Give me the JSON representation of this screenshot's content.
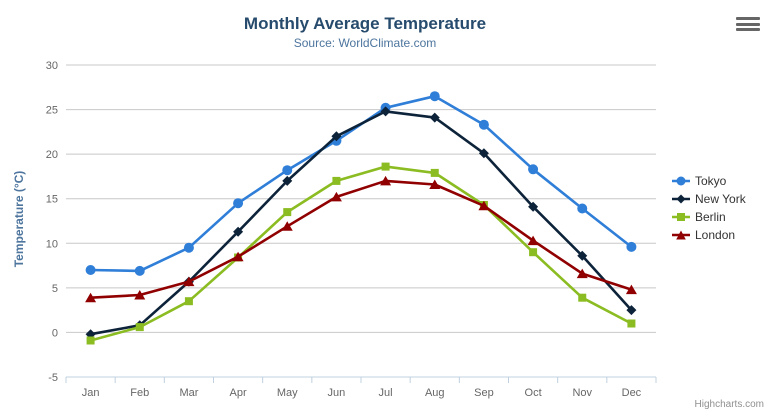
{
  "header": {
    "title": "Monthly Average Temperature",
    "subtitle": "Source: WorldClimate.com"
  },
  "credits_label": "Highcharts.com",
  "context_menu_icon": "hamburger-icon",
  "colors": {
    "title": "#274b6d",
    "subtitle": "#4d759e",
    "axis_title": "#4d759e",
    "axis_labels": "#666666",
    "gridline": "#c8c8c8",
    "axis_line": "#c0d0e0",
    "legend_text": "#333333",
    "background": "#ffffff"
  },
  "chart_data": {
    "type": "line",
    "title": "Monthly Average Temperature",
    "subtitle": "Source: WorldClimate.com",
    "xlabel": "",
    "ylabel": "Temperature (°C)",
    "ylim": [
      -5,
      30
    ],
    "yticks": [
      30,
      25,
      20,
      15,
      10,
      5,
      0,
      -5
    ],
    "grid": true,
    "legend_position": "right",
    "categories": [
      "Jan",
      "Feb",
      "Mar",
      "Apr",
      "May",
      "Jun",
      "Jul",
      "Aug",
      "Sep",
      "Oct",
      "Nov",
      "Dec"
    ],
    "series": [
      {
        "name": "Tokyo",
        "color": "#2f7ed8",
        "marker": "circle",
        "values": [
          7.0,
          6.9,
          9.5,
          14.5,
          18.2,
          21.5,
          25.2,
          26.5,
          23.3,
          18.3,
          13.9,
          9.6
        ]
      },
      {
        "name": "New York",
        "color": "#0d233a",
        "marker": "diamond",
        "values": [
          -0.2,
          0.8,
          5.7,
          11.3,
          17.0,
          22.0,
          24.8,
          24.1,
          20.1,
          14.1,
          8.6,
          2.5
        ]
      },
      {
        "name": "Berlin",
        "color": "#8bbc21",
        "marker": "square",
        "values": [
          -0.9,
          0.6,
          3.5,
          8.4,
          13.5,
          17.0,
          18.6,
          17.9,
          14.3,
          9.0,
          3.9,
          1.0
        ]
      },
      {
        "name": "London",
        "color": "#910000",
        "marker": "triangle",
        "values": [
          3.9,
          4.2,
          5.7,
          8.5,
          11.9,
          15.2,
          17.0,
          16.6,
          14.2,
          10.3,
          6.6,
          4.8
        ]
      }
    ]
  }
}
